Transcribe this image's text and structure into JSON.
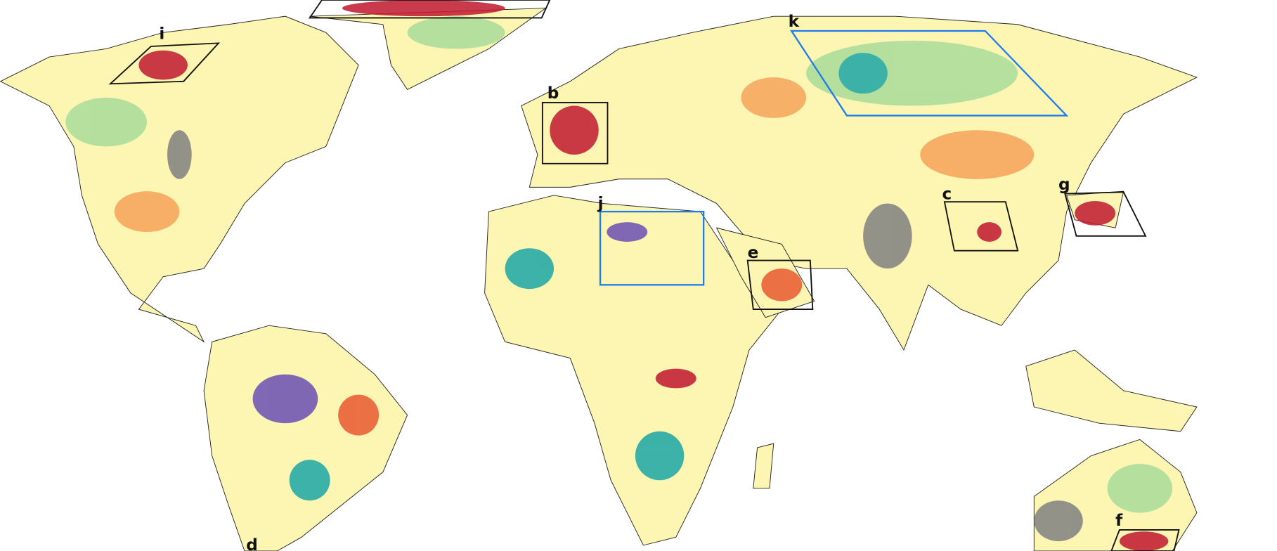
{
  "regions": [
    {
      "label": "i"
    },
    {
      "label": "b"
    },
    {
      "label": "k"
    },
    {
      "label": "j"
    },
    {
      "label": "c"
    },
    {
      "label": "g"
    },
    {
      "label": "e"
    },
    {
      "label": "f"
    },
    {
      "label": "d"
    }
  ]
}
